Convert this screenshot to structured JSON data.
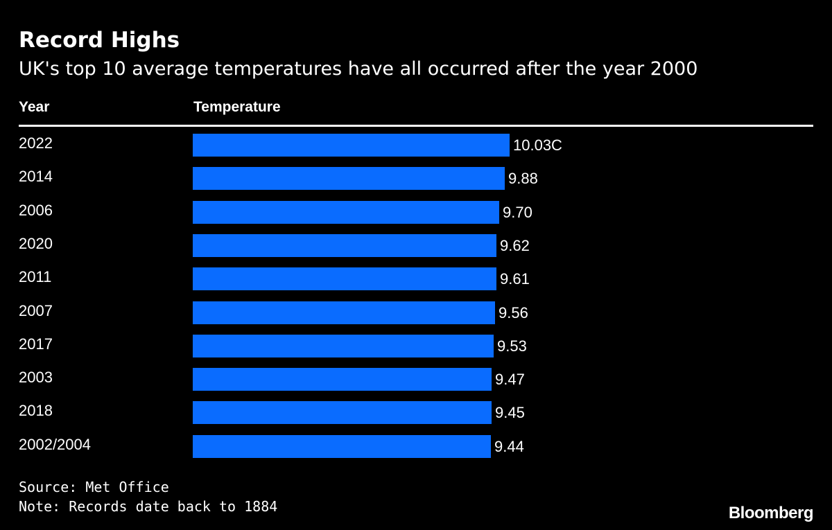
{
  "header": {
    "title": "Record Highs",
    "subtitle": "UK's top 10 average temperatures have all occurred after the year 2000"
  },
  "table": {
    "col_year": "Year",
    "col_temperature": "Temperature"
  },
  "chart_data": {
    "type": "bar",
    "orientation": "horizontal",
    "title": "Record Highs",
    "subtitle": "UK's top 10 average temperatures have all occurred after the year 2000",
    "categories": [
      "2022",
      "2014",
      "2006",
      "2020",
      "2011",
      "2007",
      "2017",
      "2003",
      "2018",
      "2002/2004"
    ],
    "values": [
      10.03,
      9.88,
      9.7,
      9.62,
      9.61,
      9.56,
      9.53,
      9.47,
      9.45,
      9.44
    ],
    "labels": [
      "10.03C",
      "9.88",
      "9.70",
      "9.62",
      "9.61",
      "9.56",
      "9.53",
      "9.47",
      "9.45",
      "9.44"
    ],
    "xlim": [
      0,
      10.03
    ],
    "bar_color": "#0a6cff",
    "background": "#000000",
    "grid": false
  },
  "footer": {
    "source": "Source: Met Office",
    "note": "Note: Records date back to 1884",
    "logo": "Bloomberg"
  }
}
